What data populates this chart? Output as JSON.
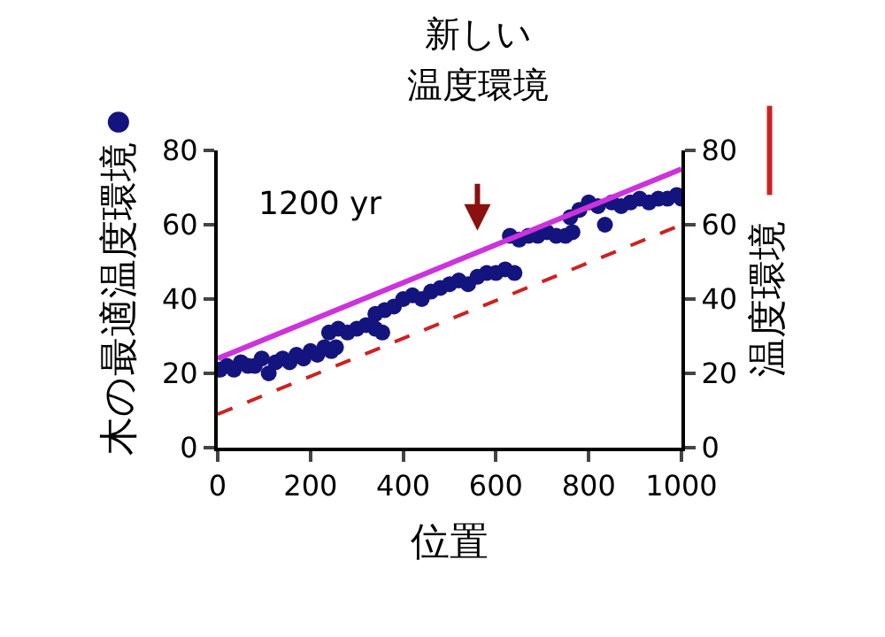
{
  "chart_data": {
    "type": "scatter",
    "title": "新しい",
    "subtitle": "温度環境",
    "xlabel": "位置",
    "ylabel": "木の最適温度環境",
    "y2label": "温度環境",
    "annotations": [
      "1200 yr"
    ],
    "xlim": [
      0,
      1000
    ],
    "xticks": [
      0,
      200,
      400,
      600,
      800,
      1000
    ],
    "ylim": [
      0,
      80
    ],
    "yticks": [
      0,
      20,
      40,
      60,
      80
    ],
    "y2lim": [
      0,
      80
    ],
    "y2ticks": [
      0,
      20,
      40,
      60,
      80
    ],
    "series": [
      {
        "color": "#14147e",
        "marker": "circle",
        "x": [
          5,
          20,
          35,
          50,
          65,
          80,
          95,
          110,
          125,
          140,
          155,
          170,
          185,
          200,
          215,
          230,
          245,
          255,
          240,
          260,
          280,
          300,
          320,
          340,
          355,
          340,
          360,
          380,
          400,
          420,
          440,
          460,
          480,
          500,
          520,
          540,
          560,
          580,
          600,
          620,
          640,
          630,
          650,
          670,
          690,
          710,
          730,
          750,
          765,
          760,
          780,
          800,
          820,
          835,
          850,
          870,
          890,
          910,
          930,
          950,
          970,
          990,
          1000
        ],
        "values": [
          21,
          22,
          21,
          23,
          22,
          22,
          24,
          20,
          23,
          24,
          23,
          25,
          24,
          26,
          25,
          27,
          26,
          27,
          31,
          32,
          31,
          32,
          33,
          32,
          31,
          36,
          37,
          38,
          40,
          41,
          40,
          42,
          43,
          44,
          45,
          44,
          46,
          47,
          47,
          48,
          47,
          57,
          56,
          57,
          57,
          58,
          57,
          57,
          58,
          62,
          64,
          66,
          65,
          60,
          66,
          65,
          66,
          67,
          66,
          67,
          67,
          68,
          67
        ]
      },
      {
        "type": "line",
        "color": "#cc33dd",
        "line_style": "solid",
        "marker": "none",
        "x": [
          0,
          1000
        ],
        "values": [
          24,
          75
        ]
      },
      {
        "type": "line",
        "color": "#cc2222",
        "line_style": "dashed",
        "marker": "none",
        "axis": "y2",
        "x": [
          0,
          1000
        ],
        "values": [
          9,
          60
        ]
      }
    ]
  }
}
